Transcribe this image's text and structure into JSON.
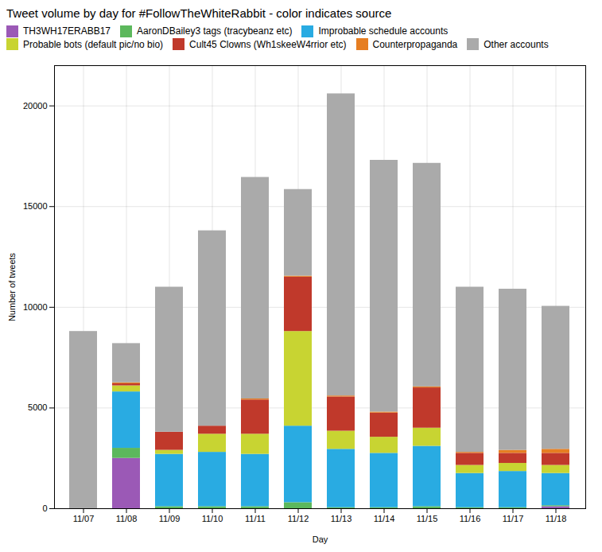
{
  "chart_data": {
    "type": "bar",
    "stacked": true,
    "title": "Tweet volume by day for #FollowTheWhiteRabbit - color indicates source",
    "xlabel": "Day",
    "ylabel": "Number of tweets",
    "categories": [
      "11/07",
      "11/08",
      "11/09",
      "11/10",
      "11/11",
      "11/12",
      "11/13",
      "11/14",
      "11/15",
      "11/16",
      "11/17",
      "11/18"
    ],
    "series": [
      {
        "name": "TH3WH17ERABB17",
        "color": "#9b59b6",
        "values": [
          0,
          2500,
          0,
          0,
          0,
          0,
          0,
          0,
          0,
          0,
          0,
          100
        ]
      },
      {
        "name": "AaronDBailey3 tags (tracybeanz etc)",
        "color": "#5cb85c",
        "values": [
          0,
          500,
          100,
          100,
          100,
          300,
          50,
          50,
          100,
          50,
          50,
          50
        ]
      },
      {
        "name": "Improbable schedule accounts",
        "color": "#29abe2",
        "values": [
          0,
          2800,
          2600,
          2700,
          2600,
          3800,
          2900,
          2700,
          3000,
          1700,
          1800,
          1600
        ]
      },
      {
        "name": "Probable bots (default pic/no bio)",
        "color": "#c8d432",
        "values": [
          0,
          300,
          200,
          900,
          1000,
          4700,
          900,
          800,
          900,
          400,
          400,
          400
        ]
      },
      {
        "name": "Cult45 Clowns (Wh1skeeW4rrior etc)",
        "color": "#c0392b",
        "values": [
          0,
          100,
          900,
          400,
          1700,
          2700,
          1700,
          1200,
          2000,
          600,
          500,
          600
        ]
      },
      {
        "name": "Counterpropaganda",
        "color": "#e67e22",
        "values": [
          0,
          50,
          0,
          0,
          50,
          50,
          50,
          50,
          50,
          50,
          150,
          200
        ]
      },
      {
        "name": "Other accounts",
        "color": "#aaaaaa",
        "values": [
          8800,
          1950,
          7200,
          9700,
          11000,
          4300,
          15000,
          12500,
          11100,
          8200,
          8000,
          7100
        ]
      }
    ],
    "ylim": [
      0,
      22000
    ],
    "yticks": [
      0,
      5000,
      10000,
      15000,
      20000
    ],
    "grid": true,
    "legend": "upper left"
  }
}
